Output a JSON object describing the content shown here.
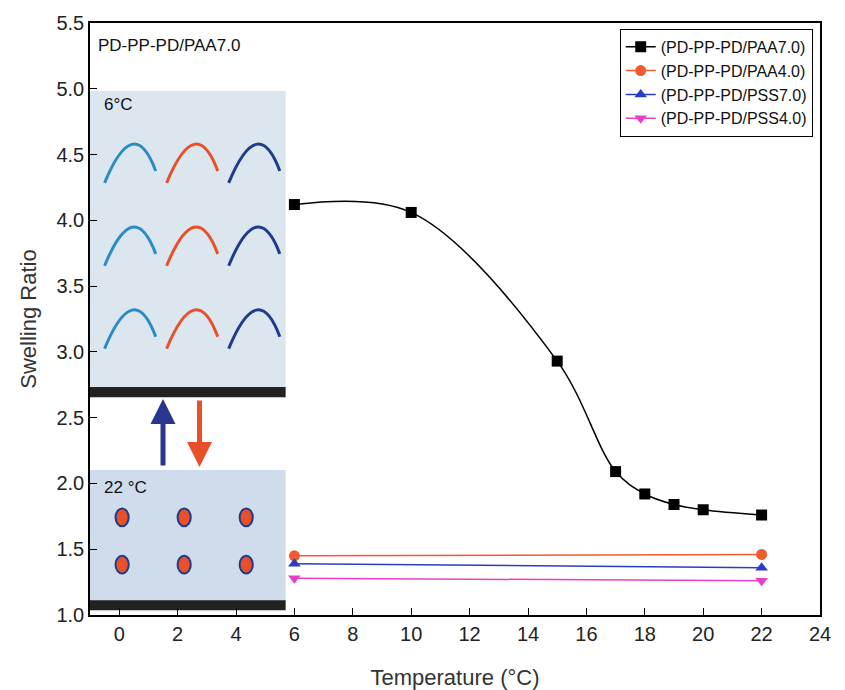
{
  "chart_data": {
    "type": "line",
    "x_label": "Temperature (°C)",
    "y_label": "Swelling Ratio",
    "xlim": [
      -1,
      24
    ],
    "xticks": [
      0,
      2,
      4,
      6,
      8,
      10,
      12,
      14,
      16,
      18,
      20,
      22,
      24
    ],
    "ylim": [
      1.0,
      5.5
    ],
    "yticks": [
      {
        "value": 1,
        "label": "1.0"
      },
      1.5,
      {
        "value": 2,
        "label": "2.0"
      },
      2.5,
      {
        "value": 3,
        "label": "3.0"
      },
      3.5,
      {
        "value": 4,
        "label": "4.0"
      },
      4.5,
      {
        "value": 5,
        "label": "5.0"
      },
      5.5
    ],
    "grid": false,
    "legend": "upper right",
    "series": [
      {
        "name": "(PD-PP-PD/PAA7.0)",
        "color": "#000000",
        "marker": "square",
        "line_style": "solid",
        "x": [
          6,
          10,
          15,
          17,
          18,
          19,
          20,
          22
        ],
        "values": [
          4.12,
          4.06,
          2.93,
          2.09,
          1.92,
          1.84,
          1.8,
          1.76
        ]
      },
      {
        "name": "(PD-PP-PD/PAA4.0)",
        "color": "#f05a30",
        "marker": "circle",
        "line_style": "solid",
        "x": [
          6,
          22
        ],
        "values": [
          1.45,
          1.46
        ]
      },
      {
        "name": "(PD-PP-PD/PSS7.0)",
        "color": "#2b3cc4",
        "marker": "triangle-up",
        "line_style": "solid",
        "x": [
          6,
          22
        ],
        "values": [
          1.39,
          1.36
        ]
      },
      {
        "name": "(PD-PP-PD/PSS4.0)",
        "color": "#e83fc8",
        "marker": "triangle-down",
        "line_style": "solid",
        "x": [
          6,
          22
        ],
        "values": [
          1.28,
          1.26
        ]
      }
    ],
    "annotations": [
      {
        "text": "PD-PP-PD/PAA7.0",
        "x": -0.8,
        "y": 5.33
      },
      {
        "text": "6°C",
        "x": -0.6,
        "y": 4.88
      },
      {
        "text": "22 °C",
        "x": -0.6,
        "y": 1.97
      }
    ]
  }
}
